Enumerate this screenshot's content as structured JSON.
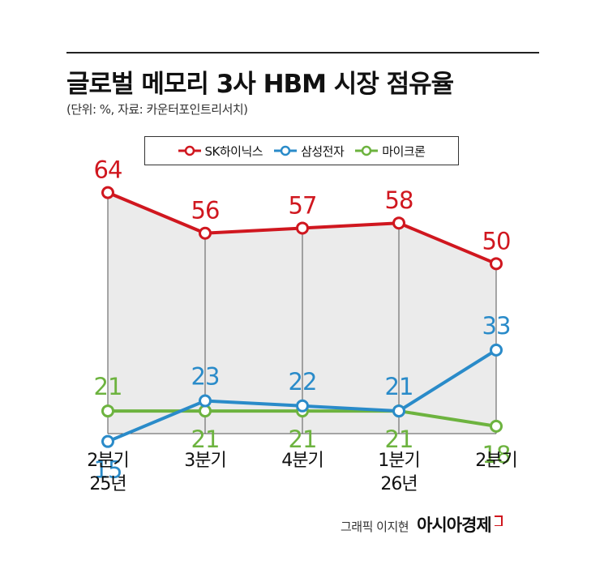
{
  "title": "글로벌 메모리 3사 HBM 시장 점유율",
  "subtitle": "(단위: %, 자료: 카운터포인트리서치)",
  "credit": {
    "text": "그래픽 이지현",
    "brand": "아시아경제"
  },
  "colors": {
    "sk": "#d0171f",
    "samsung": "#2a8bc9",
    "micron": "#6db33f",
    "area": "#ebebeb"
  },
  "chart_data": {
    "type": "line",
    "categories": [
      [
        "2분기",
        "25년"
      ],
      [
        "3분기",
        ""
      ],
      [
        "4분기",
        ""
      ],
      [
        "1분기",
        "26년"
      ],
      [
        "2분기",
        ""
      ]
    ],
    "series": [
      {
        "name": "SK하이닉스",
        "values": [
          64,
          56,
          57,
          58,
          50
        ]
      },
      {
        "name": "삼성전자",
        "values": [
          15,
          23,
          22,
          21,
          33
        ]
      },
      {
        "name": "마이크론",
        "values": [
          21,
          21,
          21,
          21,
          18
        ]
      }
    ],
    "ylim": [
      10,
      70
    ],
    "shaded_area_series": "SK하이닉스",
    "grid": false,
    "legend": "top-center"
  }
}
